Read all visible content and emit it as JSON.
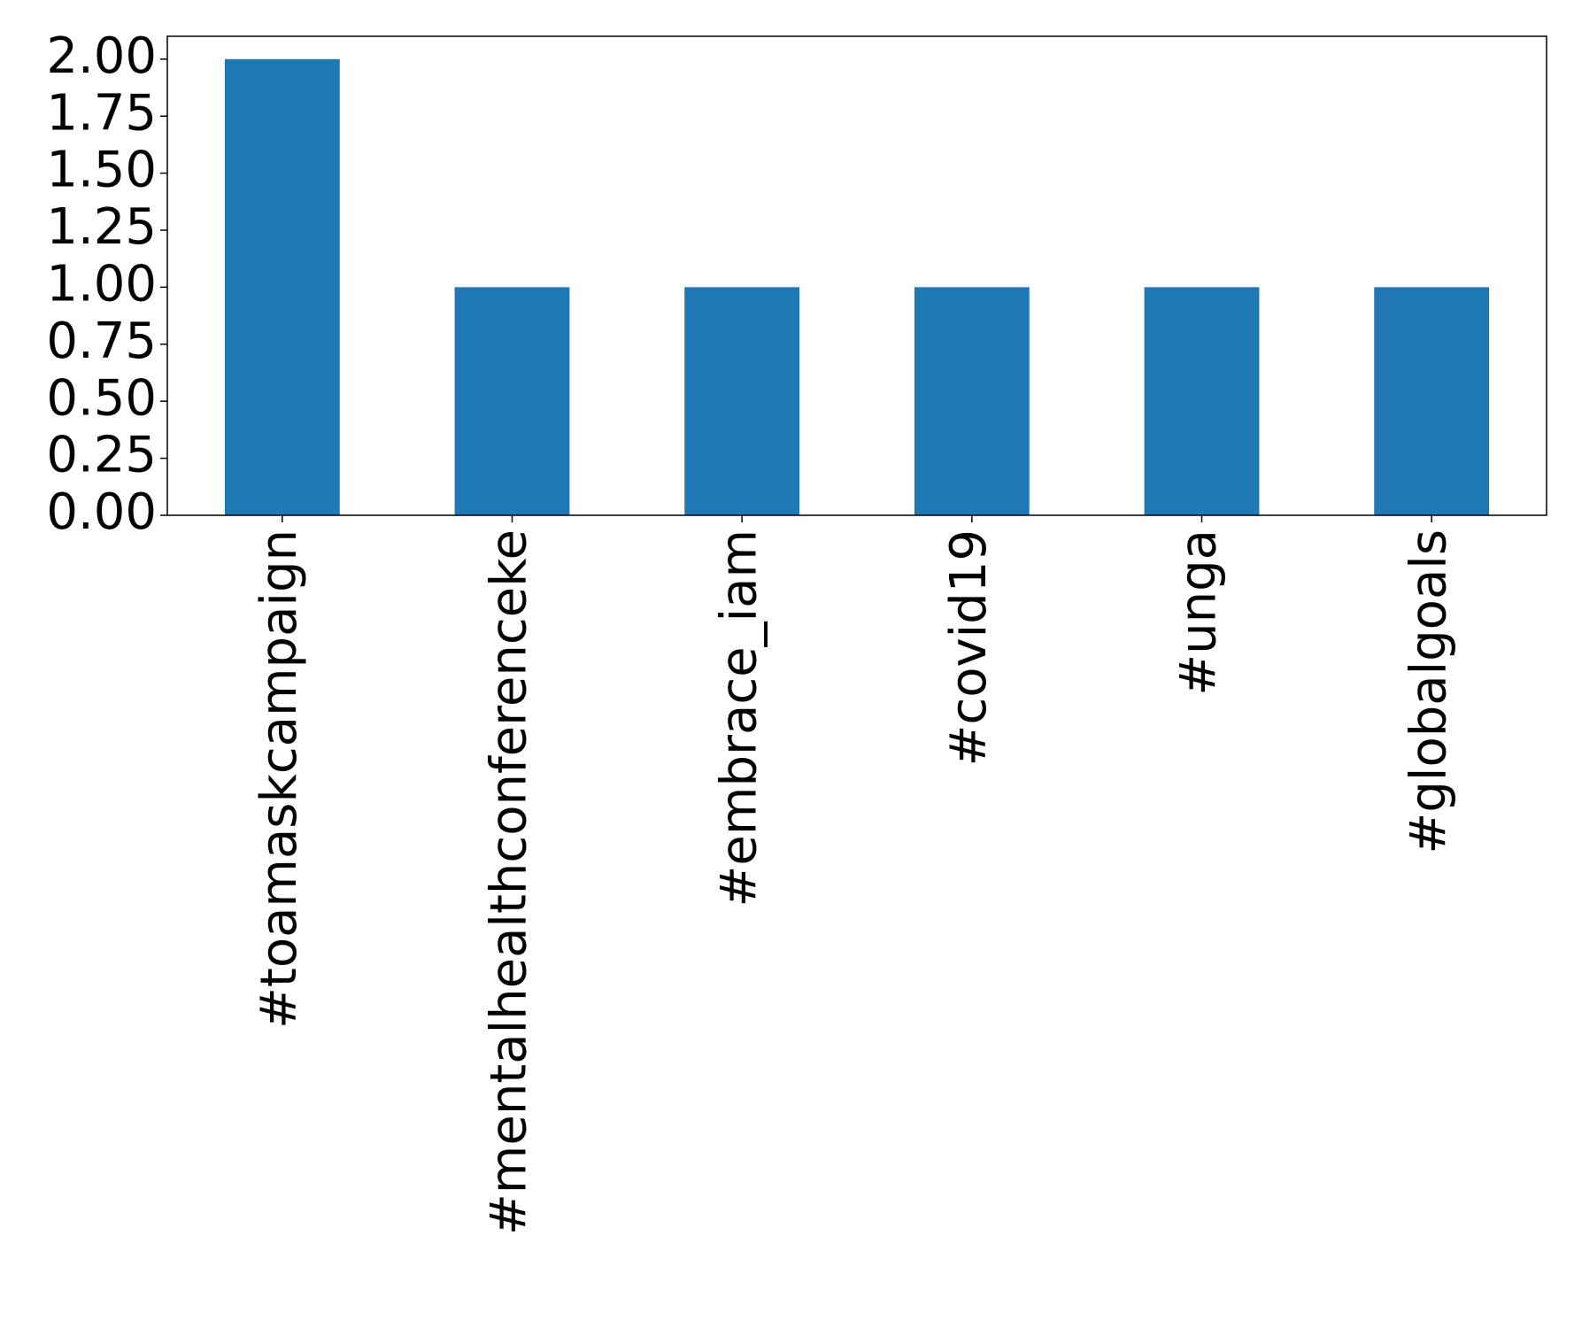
{
  "chart_data": {
    "type": "bar",
    "categories": [
      "#toamaskcampaign",
      "#mentalhealthconferenceke",
      "#embrace_iam",
      "#covid19",
      "#unga",
      "#globalgoals"
    ],
    "values": [
      2,
      1,
      1,
      1,
      1,
      1
    ],
    "color": "#1f77b4",
    "ylim": [
      0,
      2.1
    ],
    "yticks": [
      {
        "value": 0,
        "label": "0.00"
      },
      {
        "value": 0.25,
        "label": "0.25"
      },
      {
        "value": 0.5,
        "label": "0.50"
      },
      {
        "value": 0.75,
        "label": "0.75"
      },
      {
        "value": 1,
        "label": "1.00"
      },
      {
        "value": 1.25,
        "label": "1.25"
      },
      {
        "value": 1.5,
        "label": "1.50"
      },
      {
        "value": 1.75,
        "label": "1.75"
      },
      {
        "value": 2,
        "label": "2.00"
      }
    ],
    "grid": false
  }
}
